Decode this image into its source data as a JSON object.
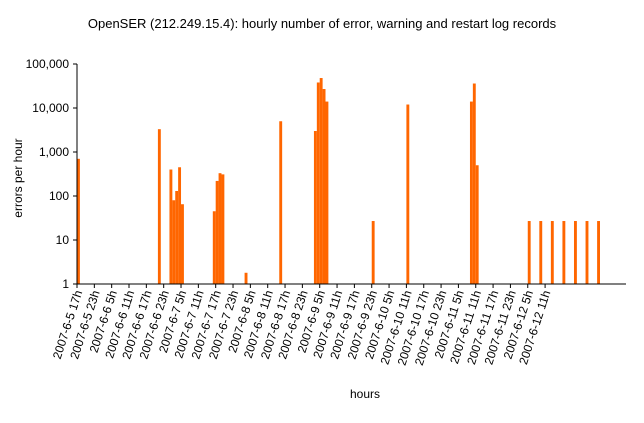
{
  "chart_data": {
    "type": "bar",
    "title": "OpenSER (212.249.15.4): hourly number of error, warning and restart log records",
    "ylabel": "errors per hour",
    "xlabel": "hours",
    "yscale": "log",
    "ylim": [
      1,
      100000
    ],
    "yticks": [
      "1",
      "10",
      "100",
      "1,000",
      "10,000",
      "100,000"
    ],
    "xticks": [
      "2007-6-5 17h",
      "2007-6-5 23h",
      "2007-6-6 5h",
      "2007-6-6 11h",
      "2007-6-6 17h",
      "2007-6-6 23h",
      "2007-6-7 5h",
      "2007-6-7 11h",
      "2007-6-7 17h",
      "2007-6-7 23h",
      "2007-6-8 5h",
      "2007-6-8 11h",
      "2007-6-8 17h",
      "2007-6-8 23h",
      "2007-6-9 5h",
      "2007-6-9 11h",
      "2007-6-9 17h",
      "2007-6-9 23h",
      "2007-6-10 5h",
      "2007-6-10 11h",
      "2007-6-10 17h",
      "2007-6-10 23h",
      "2007-6-11 5h",
      "2007-6-11 11h",
      "2007-6-11 17h",
      "2007-6-11 23h",
      "2007-6-12 5h",
      "2007-6-12 11h"
    ],
    "grid": false,
    "legend": "none",
    "bar_color": "#ff6600",
    "bars": [
      {
        "hour": "2007-6-5 17h",
        "value": 700
      },
      {
        "hour": "2007-6-6 21h",
        "value": 3300
      },
      {
        "hour": "2007-6-7 1h",
        "value": 400
      },
      {
        "hour": "2007-6-7 2h",
        "value": 80
      },
      {
        "hour": "2007-6-7 3h",
        "value": 130
      },
      {
        "hour": "2007-6-7 4h",
        "value": 450
      },
      {
        "hour": "2007-6-7 5h",
        "value": 65
      },
      {
        "hour": "2007-6-7 16h",
        "value": 45
      },
      {
        "hour": "2007-6-7 17h",
        "value": 220
      },
      {
        "hour": "2007-6-7 18h",
        "value": 330
      },
      {
        "hour": "2007-6-7 19h",
        "value": 310
      },
      {
        "hour": "2007-6-8 3h",
        "value": 1.8
      },
      {
        "hour": "2007-6-8 15h",
        "value": 5000
      },
      {
        "hour": "2007-6-9 3h",
        "value": 3000
      },
      {
        "hour": "2007-6-9 4h",
        "value": 38000
      },
      {
        "hour": "2007-6-9 5h",
        "value": 48000
      },
      {
        "hour": "2007-6-9 6h",
        "value": 27000
      },
      {
        "hour": "2007-6-9 7h",
        "value": 14000
      },
      {
        "hour": "2007-6-9 23h",
        "value": 27
      },
      {
        "hour": "2007-6-10 11h",
        "value": 12000
      },
      {
        "hour": "2007-6-11 9h",
        "value": 14000
      },
      {
        "hour": "2007-6-11 10h",
        "value": 36000
      },
      {
        "hour": "2007-6-11 11h",
        "value": 500
      },
      {
        "hour": "2007-6-12 5h",
        "value": 27
      },
      {
        "hour": "2007-6-12 9h",
        "value": 27
      },
      {
        "hour": "2007-6-12 13h",
        "value": 27
      },
      {
        "hour": "2007-6-12 17h",
        "value": 27
      },
      {
        "hour": "2007-6-12 21h",
        "value": 27
      },
      {
        "hour": "2007-6-13 1h",
        "value": 27
      },
      {
        "hour": "2007-6-13 5h",
        "value": 27
      }
    ]
  }
}
